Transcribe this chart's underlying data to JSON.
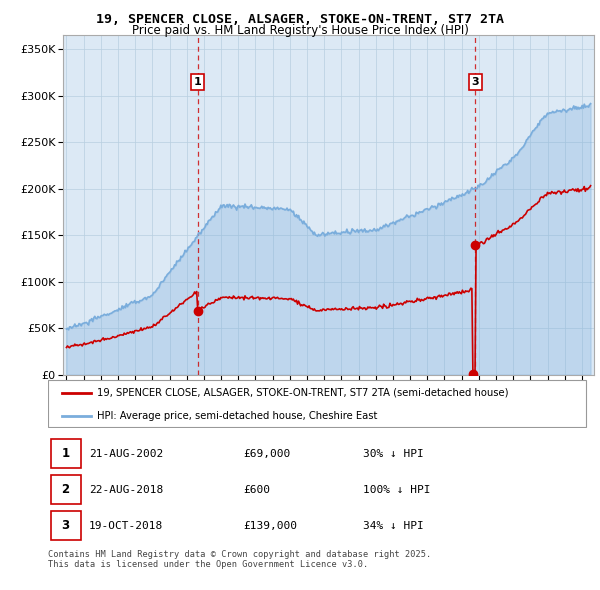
{
  "title_line1": "19, SPENCER CLOSE, ALSAGER, STOKE-ON-TRENT, ST7 2TA",
  "title_line2": "Price paid vs. HM Land Registry's House Price Index (HPI)",
  "ytick_values": [
    0,
    50000,
    100000,
    150000,
    200000,
    250000,
    300000,
    350000
  ],
  "ylim": [
    0,
    365000
  ],
  "xlim_start": 1994.8,
  "xlim_end": 2025.7,
  "sale_color": "#cc0000",
  "hpi_color": "#7aaddc",
  "vline_color": "#cc0000",
  "transaction1_date": 2002.64,
  "transaction1_price": 69000,
  "transaction2_date": 2018.645,
  "transaction2_price": 600,
  "transaction3_date": 2018.8,
  "transaction3_price": 139000,
  "legend_sale_label": "19, SPENCER CLOSE, ALSAGER, STOKE-ON-TRENT, ST7 2TA (semi-detached house)",
  "legend_hpi_label": "HPI: Average price, semi-detached house, Cheshire East",
  "table_rows": [
    [
      "1",
      "21-AUG-2002",
      "£69,000",
      "30% ↓ HPI"
    ],
    [
      "2",
      "22-AUG-2018",
      "£600",
      "100% ↓ HPI"
    ],
    [
      "3",
      "19-OCT-2018",
      "£139,000",
      "34% ↓ HPI"
    ]
  ],
  "footnote": "Contains HM Land Registry data © Crown copyright and database right 2025.\nThis data is licensed under the Open Government Licence v3.0.",
  "bg_color": "#dce9f5",
  "grid_color": "#b8cfe0"
}
